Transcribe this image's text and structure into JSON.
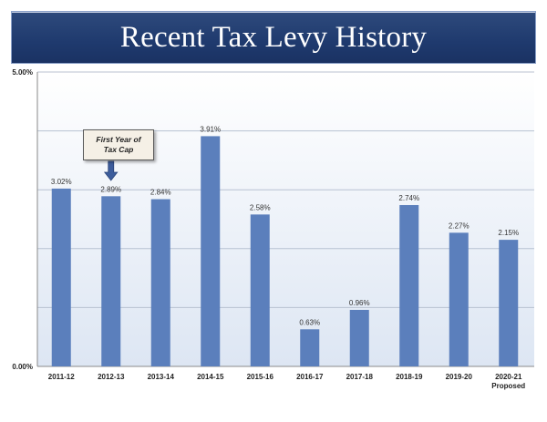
{
  "chart_data": {
    "type": "bar",
    "title": "Recent Tax Levy History",
    "categories": [
      "2011-12",
      "2012-13",
      "2013-14",
      "2014-15",
      "2015-16",
      "2016-17",
      "2017-18",
      "2018-19",
      "2019-20",
      "2020-21"
    ],
    "category_sublabels": [
      "",
      "",
      "",
      "",
      "",
      "",
      "",
      "",
      "",
      "Proposed"
    ],
    "values": [
      3.02,
      2.89,
      2.84,
      3.91,
      2.58,
      0.63,
      0.96,
      2.74,
      2.27,
      2.15
    ],
    "data_labels": [
      "3.02%",
      "2.89%",
      "2.84%",
      "3.91%",
      "2.58%",
      "0.63%",
      "0.96%",
      "2.74%",
      "2.27%",
      "2.15%"
    ],
    "ylim": [
      0,
      5
    ],
    "y_tick_labels": [
      "0.00%",
      "5.00%"
    ],
    "grid": true,
    "bar_color": "#5b7fbc",
    "annotation": {
      "line1": "First Year of",
      "line2": "Tax Cap",
      "points_to": "2012-13",
      "arrow_color": "#3d5d9c"
    }
  }
}
